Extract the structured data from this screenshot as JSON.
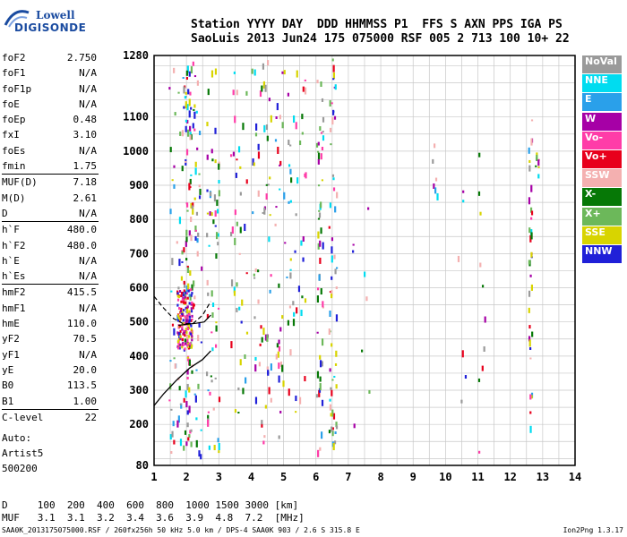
{
  "logo": {
    "line1": "Lowell",
    "line2": "DIGISONDE"
  },
  "header": {
    "line1": "Station YYYY DAY  DDD HHMMSS P1  FFS S AXN PPS IGA PS",
    "line2": "SaoLuis 2013 Jun24 175 075000 RSF 005 2 713 100 10+ 22"
  },
  "params": [
    {
      "k": "foF2",
      "v": "2.750"
    },
    {
      "k": "foF1",
      "v": "N/A"
    },
    {
      "k": "foF1p",
      "v": "N/A"
    },
    {
      "k": "foE",
      "v": "N/A"
    },
    {
      "k": "foEp",
      "v": "0.48"
    },
    {
      "k": "fxI",
      "v": "3.10"
    },
    {
      "k": "foEs",
      "v": "N/A"
    },
    {
      "k": "fmin",
      "v": "1.75"
    },
    {
      "k": "MUF(D)",
      "v": "7.18"
    },
    {
      "k": "M(D)",
      "v": "2.61"
    },
    {
      "k": "D",
      "v": "N/A"
    },
    {
      "k": "h`F",
      "v": "480.0"
    },
    {
      "k": "h`F2",
      "v": "480.0"
    },
    {
      "k": "h`E",
      "v": "N/A"
    },
    {
      "k": "h`Es",
      "v": "N/A"
    },
    {
      "k": "hmF2",
      "v": "415.5"
    },
    {
      "k": "hmF1",
      "v": "N/A"
    },
    {
      "k": "hmE",
      "v": "110.0"
    },
    {
      "k": "yF2",
      "v": "70.5"
    },
    {
      "k": "yF1",
      "v": "N/A"
    },
    {
      "k": "yE",
      "v": "20.0"
    },
    {
      "k": "B0",
      "v": "113.5"
    },
    {
      "k": "B1",
      "v": "1.00"
    },
    {
      "k": "C-level",
      "v": "22"
    }
  ],
  "auto": {
    "l1": "Auto:",
    "l2": "Artist5",
    "l3": "500200"
  },
  "legend": [
    {
      "label": "NoVal",
      "color": "#9a9a9a"
    },
    {
      "label": "NNE",
      "color": "#00dcf0"
    },
    {
      "label": "E",
      "color": "#2aa0ea"
    },
    {
      "label": "W",
      "color": "#a600a6"
    },
    {
      "label": "Vo-",
      "color": "#ff3ca8"
    },
    {
      "label": "Vo+",
      "color": "#e8001c"
    },
    {
      "label": "SSW",
      "color": "#f4b0b0"
    },
    {
      "label": "X-",
      "color": "#067806"
    },
    {
      "label": "X+",
      "color": "#6cb85a"
    },
    {
      "label": "SSE",
      "color": "#d8d400"
    },
    {
      "label": "NNW",
      "color": "#2020d8"
    }
  ],
  "muf_table": {
    "d_line": "D     100  200  400  600  800  1000 1500 3000 [km]",
    "muf_line": "MUF   3.1  3.1  3.2  3.4  3.6  3.9  4.8  7.2  [MHz]"
  },
  "footer": "SAA0K_2013175075000.RSF / 260fx256h 50 kHz 5.0 km / DPS-4 SAA0K 903 / 2.6 S 315.8 E",
  "version": "Ion2Png 1.3.17",
  "chart_data": {
    "type": "scatter",
    "xlim": [
      1,
      14
    ],
    "ylim": [
      80,
      1280
    ],
    "x_ticks": [
      1,
      2,
      3,
      4,
      5,
      6,
      7,
      8,
      9,
      10,
      11,
      12,
      13,
      14
    ],
    "y_ticks": [
      80,
      200,
      300,
      400,
      500,
      600,
      700,
      800,
      900,
      1000,
      1100,
      1280
    ],
    "grid": true,
    "legend_position": "right",
    "profile_line": [
      [
        1,
        255
      ],
      [
        1.3,
        290
      ],
      [
        1.7,
        330
      ],
      [
        2.1,
        365
      ],
      [
        2.5,
        390
      ],
      [
        2.75,
        415
      ]
    ],
    "profile_dashed": [
      [
        1,
        575
      ],
      [
        1.3,
        540
      ],
      [
        1.6,
        510
      ],
      [
        1.9,
        495
      ],
      [
        2.2,
        495
      ],
      [
        2.5,
        520
      ],
      [
        2.75,
        560
      ]
    ],
    "trace_fitted": [
      [
        1.75,
        490
      ],
      [
        2.0,
        493
      ],
      [
        2.3,
        496
      ],
      [
        2.55,
        500
      ],
      [
        2.75,
        520
      ]
    ]
  }
}
